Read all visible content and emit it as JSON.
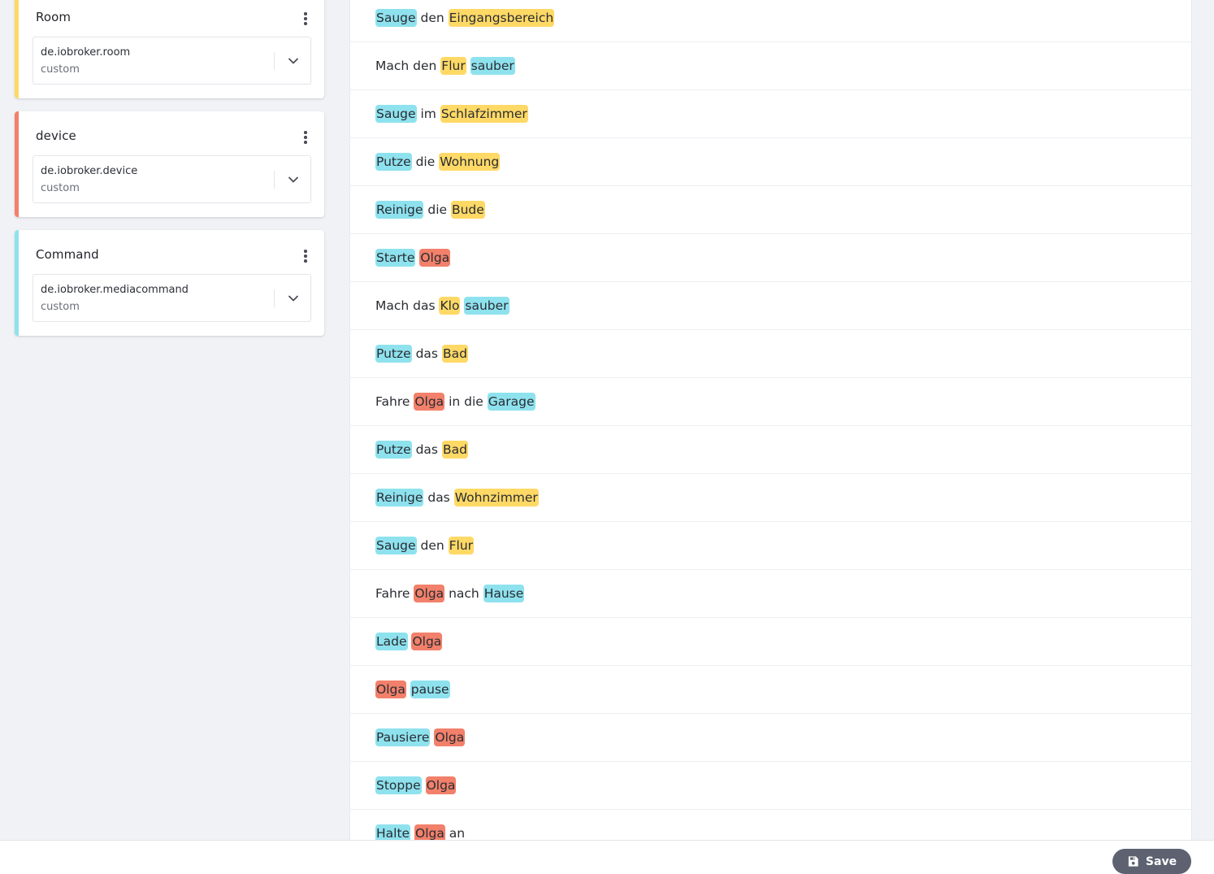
{
  "colors": {
    "room": "#ffd966",
    "device": "#f2806a",
    "command": "#8ee2ee",
    "save_button": "#5d6170"
  },
  "slots": [
    {
      "name": "Room",
      "type": "de.iobroker.room",
      "kind": "custom",
      "color_key": "room",
      "menu_icon": "more-vert-icon",
      "dropdown_icon": "chevron-down-icon"
    },
    {
      "name": "device",
      "type": "de.iobroker.device",
      "kind": "custom",
      "color_key": "device",
      "menu_icon": "more-vert-icon",
      "dropdown_icon": "chevron-down-icon"
    },
    {
      "name": "Command",
      "type": "de.iobroker.mediacommand",
      "kind": "custom",
      "color_key": "command",
      "menu_icon": "more-vert-icon",
      "dropdown_icon": "chevron-down-icon"
    }
  ],
  "utterances": [
    [
      {
        "t": "Sauge",
        "s": "command"
      },
      {
        "t": " den "
      },
      {
        "t": "Eingangsbereich",
        "s": "room"
      }
    ],
    [
      {
        "t": "Mach den "
      },
      {
        "t": "Flur",
        "s": "room"
      },
      {
        "t": " "
      },
      {
        "t": "sauber",
        "s": "command"
      }
    ],
    [
      {
        "t": "Sauge",
        "s": "command"
      },
      {
        "t": " im "
      },
      {
        "t": "Schlafzimmer",
        "s": "room"
      }
    ],
    [
      {
        "t": "Putze",
        "s": "command"
      },
      {
        "t": " die "
      },
      {
        "t": "Wohnung",
        "s": "room"
      }
    ],
    [
      {
        "t": "Reinige",
        "s": "command"
      },
      {
        "t": " die "
      },
      {
        "t": "Bude",
        "s": "room"
      }
    ],
    [
      {
        "t": "Starte",
        "s": "command"
      },
      {
        "t": " "
      },
      {
        "t": "Olga",
        "s": "device"
      }
    ],
    [
      {
        "t": "Mach das "
      },
      {
        "t": "Klo",
        "s": "room"
      },
      {
        "t": " "
      },
      {
        "t": "sauber",
        "s": "command"
      }
    ],
    [
      {
        "t": "Putze",
        "s": "command"
      },
      {
        "t": " das "
      },
      {
        "t": "Bad",
        "s": "room"
      }
    ],
    [
      {
        "t": "Fahre "
      },
      {
        "t": "Olga",
        "s": "device"
      },
      {
        "t": " in die "
      },
      {
        "t": "Garage",
        "s": "command"
      }
    ],
    [
      {
        "t": "Putze",
        "s": "command"
      },
      {
        "t": " das "
      },
      {
        "t": "Bad",
        "s": "room"
      }
    ],
    [
      {
        "t": "Reinige",
        "s": "command"
      },
      {
        "t": " das "
      },
      {
        "t": "Wohnzimmer",
        "s": "room"
      }
    ],
    [
      {
        "t": "Sauge",
        "s": "command"
      },
      {
        "t": " den "
      },
      {
        "t": "Flur",
        "s": "room"
      }
    ],
    [
      {
        "t": "Fahre "
      },
      {
        "t": "Olga",
        "s": "device"
      },
      {
        "t": " nach "
      },
      {
        "t": "Hause",
        "s": "command"
      }
    ],
    [
      {
        "t": "Lade",
        "s": "command"
      },
      {
        "t": " "
      },
      {
        "t": "Olga",
        "s": "device"
      }
    ],
    [
      {
        "t": "Olga",
        "s": "device"
      },
      {
        "t": " "
      },
      {
        "t": "pause",
        "s": "command"
      }
    ],
    [
      {
        "t": "Pausiere",
        "s": "command"
      },
      {
        "t": " "
      },
      {
        "t": "Olga",
        "s": "device"
      }
    ],
    [
      {
        "t": "Stoppe",
        "s": "command"
      },
      {
        "t": " "
      },
      {
        "t": "Olga",
        "s": "device"
      }
    ],
    [
      {
        "t": "Halte",
        "s": "command"
      },
      {
        "t": " "
      },
      {
        "t": "Olga",
        "s": "device"
      },
      {
        "t": " an"
      }
    ]
  ],
  "footer": {
    "save_label": "Save",
    "save_icon": "floppy-disk-icon"
  }
}
